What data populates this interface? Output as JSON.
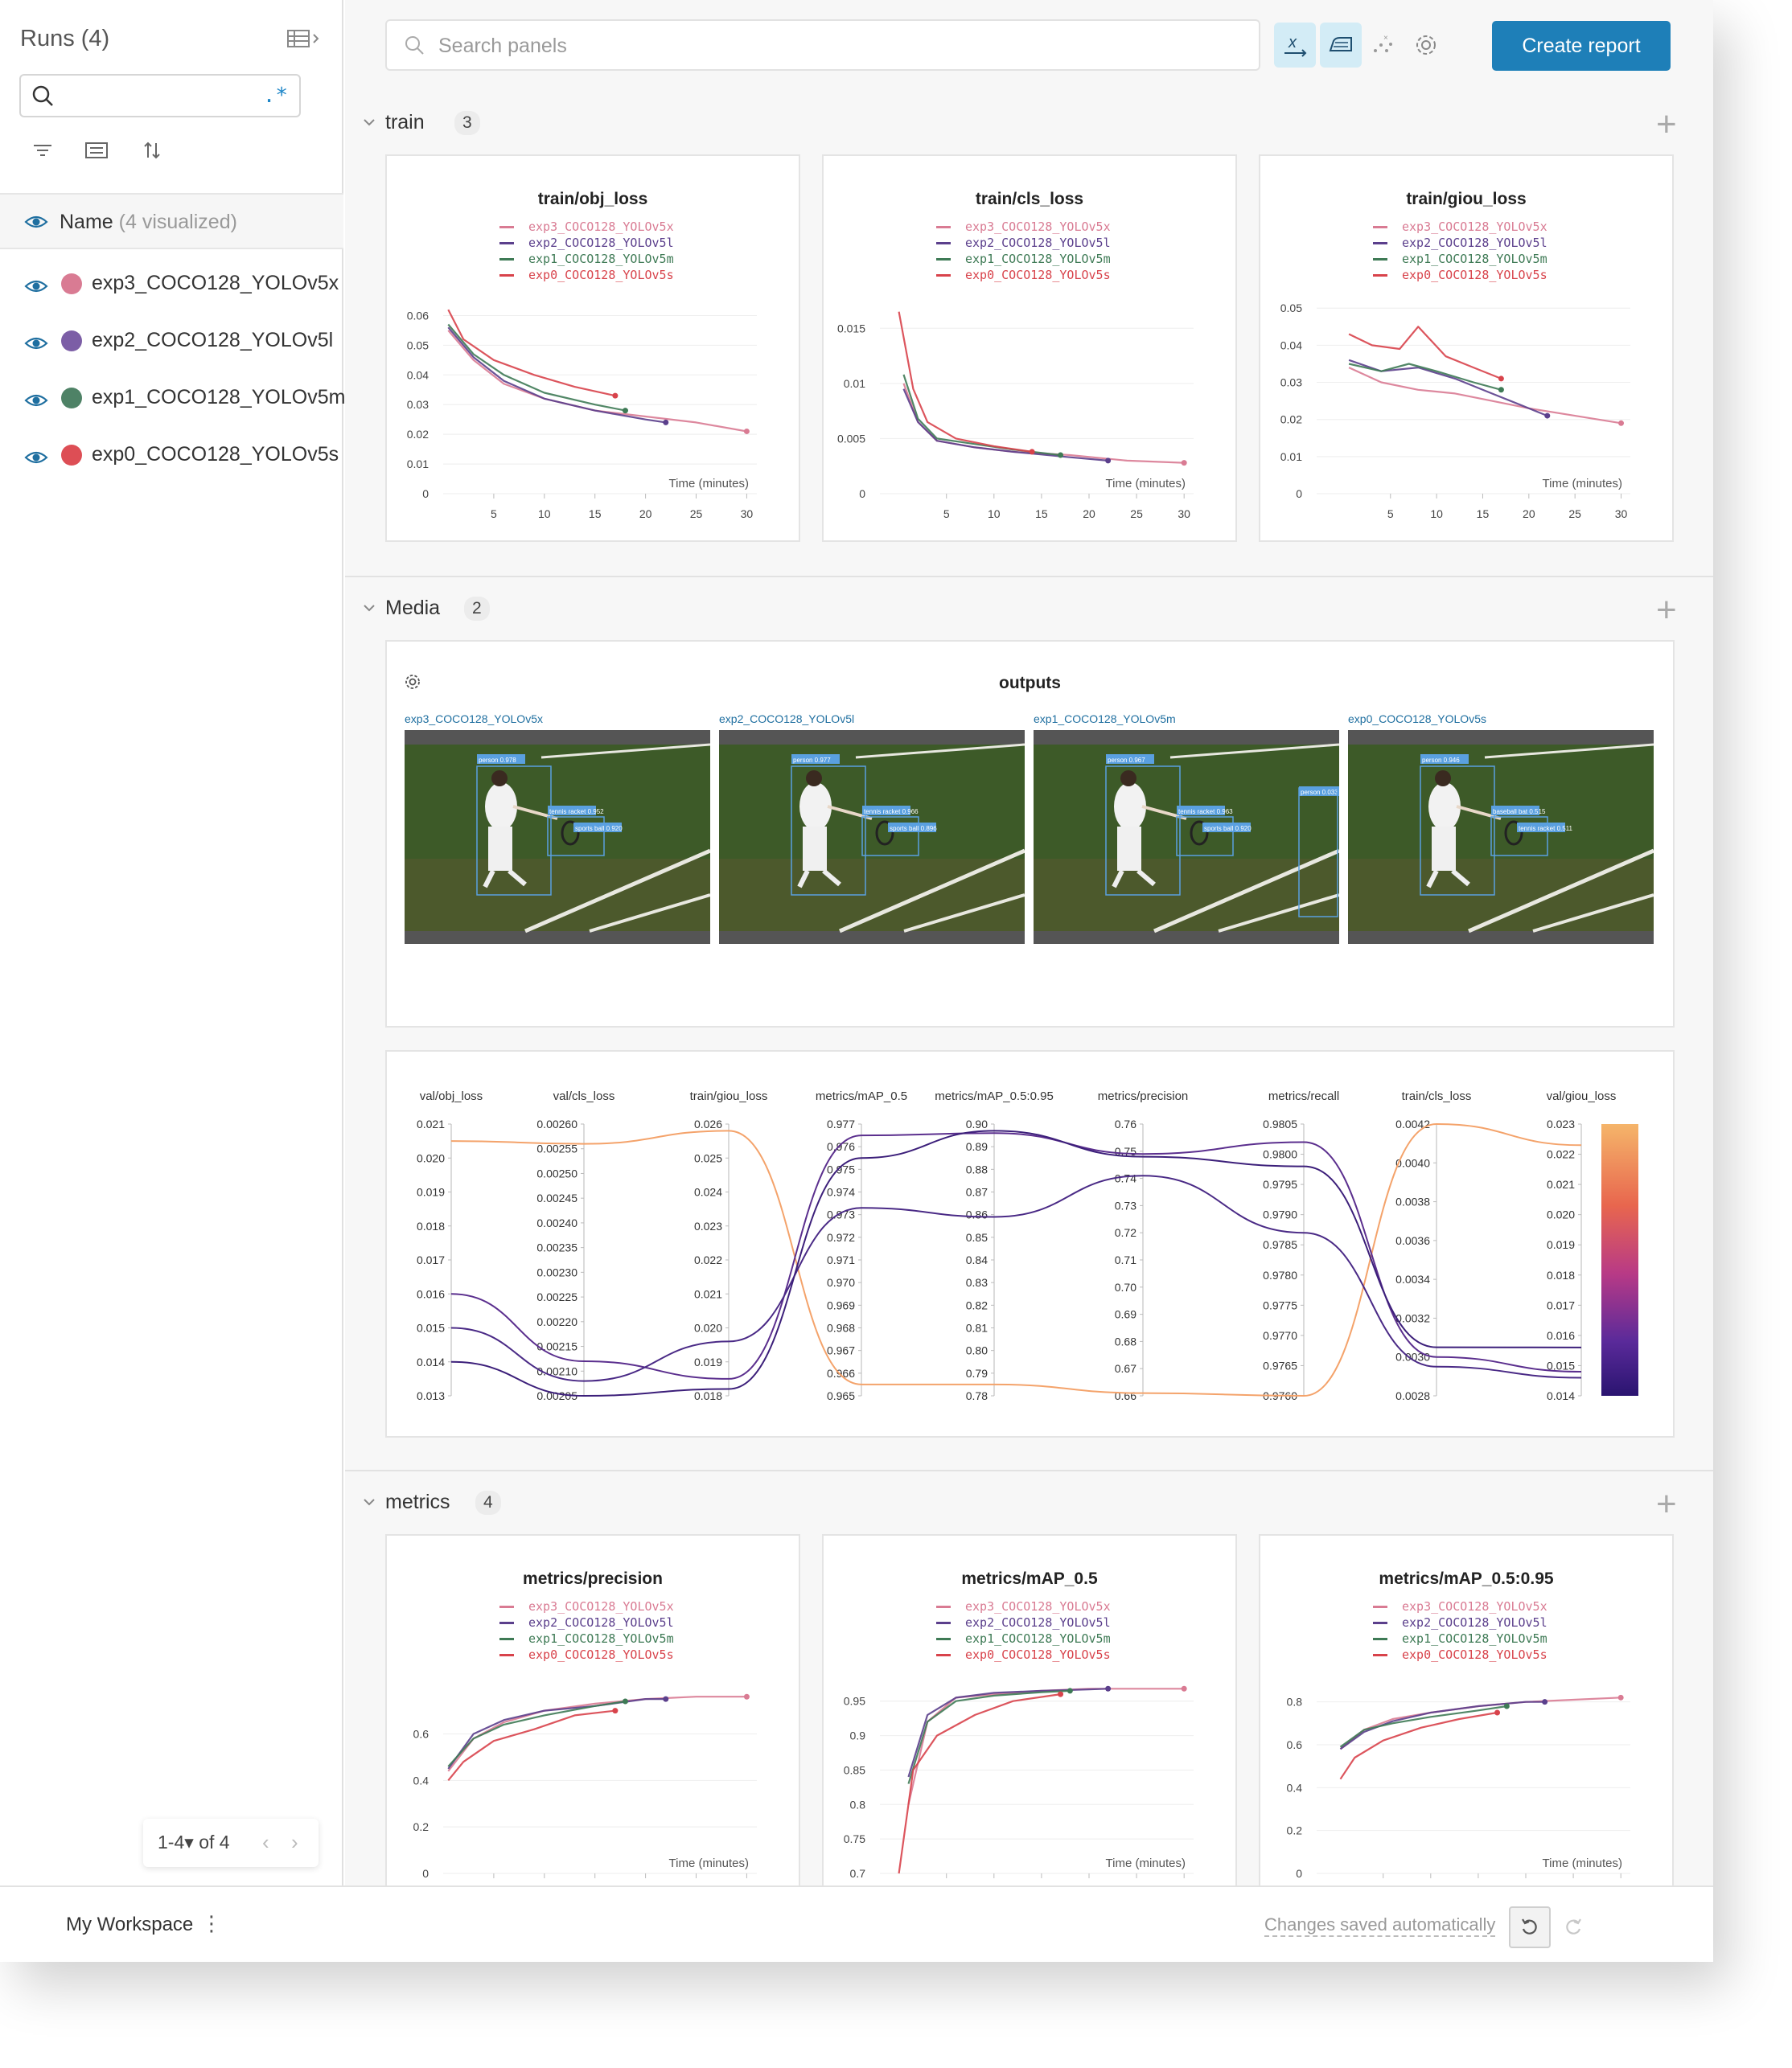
{
  "sidebar": {
    "title": "Runs (4)",
    "search": {
      "value": "",
      "placeholder": "",
      "regex_label": ".*"
    },
    "name_header": {
      "label": "Name",
      "visualized": "(4 visualized)"
    },
    "runs": [
      {
        "name": "exp3_COCO128_YOLOv5x",
        "color": "#d97b93"
      },
      {
        "name": "exp2_COCO128_YOLOv5l",
        "color": "#7c5ea6"
      },
      {
        "name": "exp1_COCO128_YOLOv5m",
        "color": "#4e8266"
      },
      {
        "name": "exp0_COCO128_YOLOv5s",
        "color": "#dd4e55"
      }
    ],
    "pager": {
      "range": "1-4",
      "of": "of 4"
    }
  },
  "toolbar": {
    "search_placeholder": "Search panels",
    "create_report": "Create report"
  },
  "sections": {
    "train": {
      "title": "train",
      "count": "3"
    },
    "media": {
      "title": "Media",
      "count": "2"
    },
    "metrics": {
      "title": "metrics",
      "count": "4"
    }
  },
  "legend": [
    {
      "name": "exp3_COCO128_YOLOv5x",
      "color": "#d97b93"
    },
    {
      "name": "exp2_COCO128_YOLOv5l",
      "color": "#5b3f8c"
    },
    {
      "name": "exp1_COCO128_YOLOv5m",
      "color": "#3e7a55"
    },
    {
      "name": "exp0_COCO128_YOLOv5s",
      "color": "#d8434b"
    }
  ],
  "chart_data": [
    {
      "type": "line",
      "title": "train/obj_loss",
      "xlabel": "Time (minutes)",
      "xticks": [
        "5",
        "10",
        "15",
        "20",
        "25",
        "30"
      ],
      "yticks": [
        "0",
        "0.01",
        "0.02",
        "0.03",
        "0.04",
        "0.05",
        "0.06"
      ],
      "xlim": [
        0,
        31
      ],
      "ylim": [
        0,
        0.065
      ],
      "series": [
        {
          "name": "exp3_COCO128_YOLOv5x",
          "x": [
            0.5,
            3,
            6,
            10,
            15,
            20,
            25,
            30
          ],
          "y": [
            0.055,
            0.045,
            0.037,
            0.032,
            0.028,
            0.026,
            0.024,
            0.021
          ]
        },
        {
          "name": "exp2_COCO128_YOLOv5l",
          "x": [
            0.5,
            3,
            6,
            10,
            15,
            20,
            22
          ],
          "y": [
            0.056,
            0.046,
            0.038,
            0.032,
            0.028,
            0.025,
            0.024
          ]
        },
        {
          "name": "exp1_COCO128_YOLOv5m",
          "x": [
            0.5,
            3,
            6,
            10,
            15,
            18
          ],
          "y": [
            0.057,
            0.047,
            0.04,
            0.034,
            0.03,
            0.028
          ]
        },
        {
          "name": "exp0_COCO128_YOLOv5s",
          "x": [
            0.5,
            2,
            5,
            9,
            13,
            17
          ],
          "y": [
            0.062,
            0.052,
            0.045,
            0.04,
            0.036,
            0.033
          ]
        }
      ]
    },
    {
      "type": "line",
      "title": "train/cls_loss",
      "xlabel": "Time (minutes)",
      "xticks": [
        "5",
        "10",
        "15",
        "20",
        "25",
        "30"
      ],
      "yticks": [
        "0",
        "0.005",
        "0.01",
        "0.015"
      ],
      "xlim": [
        -2,
        31
      ],
      "ylim": [
        0,
        0.0175
      ],
      "series": [
        {
          "name": "exp3_COCO128_YOLOv5x",
          "x": [
            0.5,
            2,
            4,
            8,
            12,
            18,
            24,
            30
          ],
          "y": [
            0.01,
            0.0065,
            0.0048,
            0.0042,
            0.0038,
            0.0035,
            0.003,
            0.0028
          ]
        },
        {
          "name": "exp2_COCO128_YOLOv5l",
          "x": [
            0.5,
            2,
            4,
            8,
            12,
            18,
            22
          ],
          "y": [
            0.0095,
            0.0065,
            0.0048,
            0.0042,
            0.0038,
            0.0033,
            0.003
          ]
        },
        {
          "name": "exp1_COCO128_YOLOv5m",
          "x": [
            0.5,
            2,
            4,
            8,
            12,
            17
          ],
          "y": [
            0.0108,
            0.0068,
            0.005,
            0.0045,
            0.004,
            0.0035
          ]
        },
        {
          "name": "exp0_COCO128_YOLOv5s",
          "x": [
            0,
            1.5,
            3,
            6,
            10,
            14
          ],
          "y": [
            0.0165,
            0.0095,
            0.0065,
            0.005,
            0.0043,
            0.0038
          ]
        }
      ]
    },
    {
      "type": "line",
      "title": "train/giou_loss",
      "xlabel": "Time (minutes)",
      "xticks": [
        "5",
        "10",
        "15",
        "20",
        "25",
        "30"
      ],
      "yticks": [
        "0",
        "0.01",
        "0.02",
        "0.03",
        "0.04",
        "0.05"
      ],
      "xlim": [
        -3,
        31
      ],
      "ylim": [
        0,
        0.052
      ],
      "series": [
        {
          "name": "exp3_COCO128_YOLOv5x",
          "x": [
            0.5,
            4,
            8,
            12,
            16,
            20,
            25,
            30
          ],
          "y": [
            0.034,
            0.03,
            0.028,
            0.027,
            0.025,
            0.023,
            0.021,
            0.019
          ]
        },
        {
          "name": "exp2_COCO128_YOLOv5l",
          "x": [
            0.5,
            4,
            8,
            12,
            16,
            19,
            22
          ],
          "y": [
            0.036,
            0.033,
            0.034,
            0.031,
            0.027,
            0.024,
            0.021
          ]
        },
        {
          "name": "exp1_COCO128_YOLOv5m",
          "x": [
            0.5,
            4,
            7,
            10,
            14,
            17
          ],
          "y": [
            0.035,
            0.033,
            0.035,
            0.033,
            0.03,
            0.028
          ]
        },
        {
          "name": "exp0_COCO128_YOLOv5s",
          "x": [
            0.5,
            3,
            6,
            8,
            11,
            14,
            17
          ],
          "y": [
            0.043,
            0.04,
            0.039,
            0.045,
            0.037,
            0.034,
            0.031
          ]
        }
      ]
    },
    {
      "type": "line",
      "title": "metrics/precision",
      "xlabel": "Time (minutes)",
      "xticks": [
        "5",
        "10",
        "15",
        "20",
        "25",
        "30"
      ],
      "yticks": [
        "0",
        "0.2",
        "0.4",
        "0.6"
      ],
      "xlim": [
        0,
        31
      ],
      "ylim": [
        0,
        0.83
      ],
      "series": [
        {
          "name": "exp3_COCO128_YOLOv5x",
          "x": [
            0.5,
            3,
            6,
            10,
            15,
            20,
            25,
            30
          ],
          "y": [
            0.44,
            0.58,
            0.65,
            0.7,
            0.73,
            0.75,
            0.76,
            0.76
          ]
        },
        {
          "name": "exp2_COCO128_YOLOv5l",
          "x": [
            0.5,
            3,
            6,
            10,
            15,
            20,
            22
          ],
          "y": [
            0.45,
            0.6,
            0.66,
            0.7,
            0.72,
            0.75,
            0.75
          ]
        },
        {
          "name": "exp1_COCO128_YOLOv5m",
          "x": [
            0.5,
            3,
            6,
            10,
            15,
            18
          ],
          "y": [
            0.46,
            0.58,
            0.64,
            0.68,
            0.72,
            0.74
          ]
        },
        {
          "name": "exp0_COCO128_YOLOv5s",
          "x": [
            0.5,
            2,
            5,
            9,
            13,
            17
          ],
          "y": [
            0.4,
            0.48,
            0.57,
            0.62,
            0.68,
            0.7
          ]
        }
      ]
    },
    {
      "type": "line",
      "title": "metrics/mAP_0.5",
      "xlabel": "Time (minutes)",
      "xticks": [
        "5",
        "10",
        "15",
        "20",
        "25",
        "30"
      ],
      "yticks": [
        "0.7",
        "0.75",
        "0.8",
        "0.85",
        "0.9",
        "0.95"
      ],
      "xlim": [
        -2,
        31
      ],
      "ylim": [
        0.7,
        0.98
      ],
      "series": [
        {
          "name": "exp3_COCO128_YOLOv5x",
          "x": [
            1,
            3,
            6,
            10,
            15,
            20,
            25,
            30
          ],
          "y": [
            0.8,
            0.92,
            0.955,
            0.96,
            0.965,
            0.968,
            0.968,
            0.968
          ]
        },
        {
          "name": "exp2_COCO128_YOLOv5l",
          "x": [
            1,
            3,
            6,
            10,
            15,
            20,
            22
          ],
          "y": [
            0.84,
            0.93,
            0.955,
            0.962,
            0.965,
            0.967,
            0.968
          ]
        },
        {
          "name": "exp1_COCO128_YOLOv5m",
          "x": [
            1,
            3,
            6,
            10,
            15,
            18
          ],
          "y": [
            0.83,
            0.92,
            0.95,
            0.958,
            0.963,
            0.965
          ]
        },
        {
          "name": "exp0_COCO128_YOLOv5s",
          "x": [
            0,
            1.5,
            4,
            8,
            12,
            17
          ],
          "y": [
            0.7,
            0.85,
            0.9,
            0.93,
            0.95,
            0.96
          ]
        }
      ]
    },
    {
      "type": "line",
      "title": "metrics/mAP_0.5:0.95",
      "xlabel": "Time (minutes)",
      "xticks": [
        "5",
        "10",
        "15",
        "20",
        "25",
        "30"
      ],
      "yticks": [
        "0",
        "0.2",
        "0.4",
        "0.6",
        "0.8"
      ],
      "xlim": [
        -2,
        31
      ],
      "ylim": [
        0,
        0.9
      ],
      "series": [
        {
          "name": "exp3_COCO128_YOLOv5x",
          "x": [
            0.5,
            3,
            6,
            10,
            15,
            20,
            25,
            30
          ],
          "y": [
            0.58,
            0.67,
            0.72,
            0.75,
            0.78,
            0.8,
            0.81,
            0.82
          ]
        },
        {
          "name": "exp2_COCO128_YOLOv5l",
          "x": [
            0.5,
            3,
            6,
            10,
            15,
            20,
            22
          ],
          "y": [
            0.58,
            0.66,
            0.71,
            0.75,
            0.78,
            0.8,
            0.8
          ]
        },
        {
          "name": "exp1_COCO128_YOLOv5m",
          "x": [
            0.5,
            3,
            6,
            10,
            15,
            18
          ],
          "y": [
            0.59,
            0.67,
            0.7,
            0.73,
            0.76,
            0.78
          ]
        },
        {
          "name": "exp0_COCO128_YOLOv5s",
          "x": [
            0.5,
            2,
            5,
            9,
            13,
            17
          ],
          "y": [
            0.44,
            0.54,
            0.62,
            0.68,
            0.72,
            0.75
          ]
        }
      ]
    }
  ],
  "media": {
    "title": "outputs",
    "images": [
      {
        "run": "exp3_COCO128_YOLOv5x",
        "labels": [
          "person 0.978",
          "tennis racket 0.952",
          "sports ball 0.920"
        ]
      },
      {
        "run": "exp2_COCO128_YOLOv5l",
        "labels": [
          "person 0.977",
          "tennis racket 0.966",
          "sports ball 0.896"
        ]
      },
      {
        "run": "exp1_COCO128_YOLOv5m",
        "labels": [
          "person 0.967",
          "tennis racket 0.963",
          "sports ball 0.920",
          "person 0.033"
        ]
      },
      {
        "run": "exp0_COCO128_YOLOv5s",
        "labels": [
          "person 0.946",
          "baseball bat 0.515",
          "tennis racket 0.511"
        ]
      }
    ]
  },
  "parallel": {
    "axes": [
      {
        "label": "val/obj_loss",
        "ticks": [
          "0.021",
          "0.020",
          "0.019",
          "0.018",
          "0.017",
          "0.016",
          "0.015",
          "0.014",
          "0.013"
        ]
      },
      {
        "label": "val/cls_loss",
        "ticks": [
          "0.00260",
          "0.00255",
          "0.00250",
          "0.00245",
          "0.00240",
          "0.00235",
          "0.00230",
          "0.00225",
          "0.00220",
          "0.00215",
          "0.00210",
          "0.00205"
        ]
      },
      {
        "label": "train/giou_loss",
        "ticks": [
          "0.026",
          "0.025",
          "0.024",
          "0.023",
          "0.022",
          "0.021",
          "0.020",
          "0.019",
          "0.018"
        ]
      },
      {
        "label": "metrics/mAP_0.5",
        "ticks": [
          "0.977",
          "0.976",
          "0.975",
          "0.974",
          "0.973",
          "0.972",
          "0.971",
          "0.970",
          "0.969",
          "0.968",
          "0.967",
          "0.966",
          "0.965"
        ]
      },
      {
        "label": "metrics/mAP_0.5:0.95",
        "ticks": [
          "0.90",
          "0.89",
          "0.88",
          "0.87",
          "0.86",
          "0.85",
          "0.84",
          "0.83",
          "0.82",
          "0.81",
          "0.80",
          "0.79",
          "0.78"
        ]
      },
      {
        "label": "metrics/precision",
        "ticks": [
          "0.76",
          "0.75",
          "0.74",
          "0.73",
          "0.72",
          "0.71",
          "0.70",
          "0.69",
          "0.68",
          "0.67",
          "0.66"
        ]
      },
      {
        "label": "metrics/recall",
        "ticks": [
          "0.9805",
          "0.9800",
          "0.9795",
          "0.9790",
          "0.9785",
          "0.9780",
          "0.9775",
          "0.9770",
          "0.9765",
          "0.9760"
        ]
      },
      {
        "label": "train/cls_loss",
        "ticks": [
          "0.0042",
          "0.0040",
          "0.0038",
          "0.0036",
          "0.0034",
          "0.0032",
          "0.0030",
          "0.0028"
        ]
      },
      {
        "label": "val/giou_loss",
        "ticks": [
          "0.023",
          "0.022",
          "0.021",
          "0.020",
          "0.019",
          "0.018",
          "0.017",
          "0.016",
          "0.015",
          "0.014"
        ]
      }
    ],
    "lines": [
      {
        "color": "#f4a36b",
        "values": [
          0.0205,
          0.00256,
          0.0258,
          0.9655,
          0.785,
          0.661,
          0.976,
          0.0042,
          0.0223
        ]
      },
      {
        "color": "#5b2f8e",
        "values": [
          0.016,
          0.00212,
          0.0185,
          0.9765,
          0.896,
          0.749,
          0.9802,
          0.003,
          0.0148
        ]
      },
      {
        "color": "#4a2a86",
        "values": [
          0.015,
          0.00208,
          0.0196,
          0.9733,
          0.859,
          0.741,
          0.9787,
          0.00295,
          0.0146
        ]
      },
      {
        "color": "#3c1f7a",
        "values": [
          0.014,
          0.00205,
          0.0182,
          0.9755,
          0.897,
          0.748,
          0.9798,
          0.00305,
          0.0156
        ]
      }
    ]
  },
  "footer": {
    "workspace": "My Workspace",
    "saved": "Changes saved automatically"
  }
}
